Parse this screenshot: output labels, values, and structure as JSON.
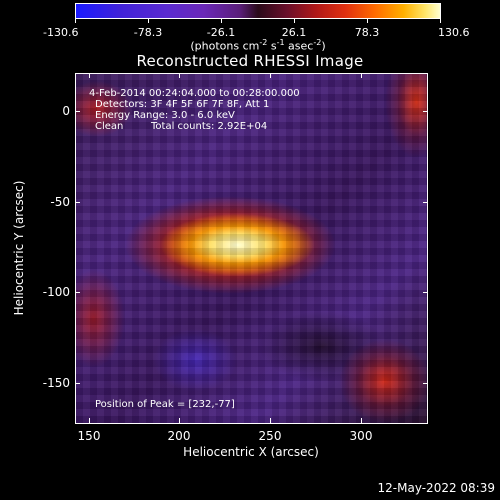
{
  "colorbar": {
    "ticks": [
      "-130.6",
      "-78.3",
      "-26.1",
      "26.1",
      "78.3",
      "130.6"
    ],
    "units_prefix": "(photons cm",
    "units_exp1": "-2",
    "units_mid": " s",
    "units_exp2": "-1",
    "units_mid2": " asec",
    "units_exp3": "-2",
    "units_suffix": ")"
  },
  "plot": {
    "title": "Reconstructed RHESSI Image",
    "annotations": {
      "time_range": "4-Feb-2014 00:24:04.000 to 00:28:00.000",
      "detectors": "Detectors: 3F 4F 5F 6F 7F 8F, Att 1",
      "energy": "Energy Range: 3.0 - 6.0 keV",
      "algorithm": "Clean",
      "counts": "Total counts: 2.92E+04",
      "peak": "Position of Peak = [232,-77]"
    },
    "x_axis": {
      "title": "Heliocentric X (arcsec)",
      "ticks": [
        "150",
        "200",
        "250",
        "300"
      ]
    },
    "y_axis": {
      "title": "Heliocentric Y (arcsec)",
      "ticks": [
        "0",
        "-50",
        "-100",
        "-150"
      ]
    }
  },
  "footer": {
    "timestamp": "12-May-2022 08:39"
  },
  "colors": {
    "background": "#000000",
    "foreground": "#ffffff",
    "peak": "#ffffd0"
  }
}
